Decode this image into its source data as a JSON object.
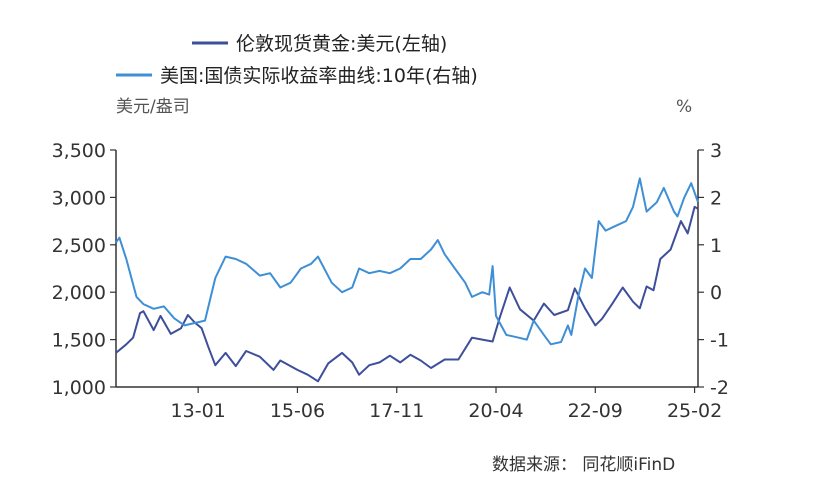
{
  "chart_data": {
    "type": "line",
    "title": "",
    "legend_position": "top",
    "grid": false,
    "x_ticks": [
      "13-01",
      "15-06",
      "17-11",
      "20-04",
      "22-09",
      "25-02"
    ],
    "x_range": [
      "2011-01",
      "2025-03"
    ],
    "y_left": {
      "unit": "美元/盎司",
      "ylim": [
        1000,
        3500
      ],
      "ticks": [
        "1,000",
        "1,500",
        "2,000",
        "2,500",
        "3,000",
        "3,500"
      ]
    },
    "y_right": {
      "unit": "%",
      "ylim": [
        -2,
        3
      ],
      "ticks": [
        "-2",
        "-1",
        "0",
        "1",
        "2",
        "3"
      ]
    },
    "series": [
      {
        "name": "伦敦现货黄金:美元(左轴)",
        "axis": "left",
        "color": "#3d4f9a",
        "points": [
          [
            "2011-01",
            1360
          ],
          [
            "2011-04",
            1450
          ],
          [
            "2011-06",
            1520
          ],
          [
            "2011-08",
            1780
          ],
          [
            "2011-09",
            1800
          ],
          [
            "2011-12",
            1600
          ],
          [
            "2012-02",
            1750
          ],
          [
            "2012-05",
            1560
          ],
          [
            "2012-08",
            1620
          ],
          [
            "2012-10",
            1760
          ],
          [
            "2012-12",
            1680
          ],
          [
            "2013-02",
            1620
          ],
          [
            "2013-04",
            1420
          ],
          [
            "2013-06",
            1230
          ],
          [
            "2013-09",
            1360
          ],
          [
            "2013-12",
            1220
          ],
          [
            "2014-03",
            1380
          ],
          [
            "2014-07",
            1320
          ],
          [
            "2014-11",
            1180
          ],
          [
            "2015-01",
            1280
          ],
          [
            "2015-06",
            1180
          ],
          [
            "2015-09",
            1130
          ],
          [
            "2015-12",
            1060
          ],
          [
            "2016-03",
            1250
          ],
          [
            "2016-07",
            1360
          ],
          [
            "2016-10",
            1260
          ],
          [
            "2016-12",
            1130
          ],
          [
            "2017-03",
            1230
          ],
          [
            "2017-06",
            1260
          ],
          [
            "2017-09",
            1330
          ],
          [
            "2017-12",
            1260
          ],
          [
            "2018-03",
            1340
          ],
          [
            "2018-06",
            1280
          ],
          [
            "2018-09",
            1200
          ],
          [
            "2019-01",
            1290
          ],
          [
            "2019-05",
            1290
          ],
          [
            "2019-09",
            1520
          ],
          [
            "2019-12",
            1500
          ],
          [
            "2020-03",
            1480
          ],
          [
            "2020-05",
            1720
          ],
          [
            "2020-08",
            2050
          ],
          [
            "2020-11",
            1820
          ],
          [
            "2021-03",
            1700
          ],
          [
            "2021-06",
            1880
          ],
          [
            "2021-09",
            1760
          ],
          [
            "2022-01",
            1810
          ],
          [
            "2022-03",
            2040
          ],
          [
            "2022-06",
            1830
          ],
          [
            "2022-09",
            1650
          ],
          [
            "2022-11",
            1720
          ],
          [
            "2023-02",
            1880
          ],
          [
            "2023-05",
            2050
          ],
          [
            "2023-08",
            1900
          ],
          [
            "2023-10",
            1830
          ],
          [
            "2023-12",
            2060
          ],
          [
            "2024-02",
            2020
          ],
          [
            "2024-04",
            2350
          ],
          [
            "2024-07",
            2450
          ],
          [
            "2024-10",
            2750
          ],
          [
            "2024-12",
            2620
          ],
          [
            "2025-02",
            2900
          ],
          [
            "2025-03",
            2880
          ]
        ]
      },
      {
        "name": "美国:国债实际收益率曲线:10年(右轴)",
        "axis": "right",
        "color": "#3f8fd6",
        "points": [
          [
            "2011-01",
            1.05
          ],
          [
            "2011-02",
            1.15
          ],
          [
            "2011-04",
            0.7
          ],
          [
            "2011-07",
            -0.1
          ],
          [
            "2011-09",
            -0.25
          ],
          [
            "2011-12",
            -0.35
          ],
          [
            "2012-03",
            -0.3
          ],
          [
            "2012-06",
            -0.55
          ],
          [
            "2012-09",
            -0.7
          ],
          [
            "2012-12",
            -0.65
          ],
          [
            "2013-03",
            -0.6
          ],
          [
            "2013-06",
            0.3
          ],
          [
            "2013-09",
            0.75
          ],
          [
            "2013-12",
            0.7
          ],
          [
            "2014-03",
            0.6
          ],
          [
            "2014-07",
            0.35
          ],
          [
            "2014-10",
            0.4
          ],
          [
            "2015-01",
            0.1
          ],
          [
            "2015-04",
            0.2
          ],
          [
            "2015-07",
            0.5
          ],
          [
            "2015-10",
            0.6
          ],
          [
            "2015-12",
            0.75
          ],
          [
            "2016-04",
            0.2
          ],
          [
            "2016-07",
            0.0
          ],
          [
            "2016-10",
            0.1
          ],
          [
            "2016-12",
            0.5
          ],
          [
            "2017-03",
            0.4
          ],
          [
            "2017-06",
            0.45
          ],
          [
            "2017-09",
            0.4
          ],
          [
            "2017-12",
            0.5
          ],
          [
            "2018-03",
            0.7
          ],
          [
            "2018-06",
            0.7
          ],
          [
            "2018-09",
            0.9
          ],
          [
            "2018-11",
            1.1
          ],
          [
            "2019-01",
            0.8
          ],
          [
            "2019-04",
            0.5
          ],
          [
            "2019-07",
            0.2
          ],
          [
            "2019-09",
            -0.1
          ],
          [
            "2019-12",
            0.0
          ],
          [
            "2020-02",
            -0.05
          ],
          [
            "2020-03",
            0.55
          ],
          [
            "2020-04",
            -0.5
          ],
          [
            "2020-07",
            -0.9
          ],
          [
            "2020-10",
            -0.95
          ],
          [
            "2021-01",
            -1.0
          ],
          [
            "2021-03",
            -0.6
          ],
          [
            "2021-06",
            -0.9
          ],
          [
            "2021-08",
            -1.1
          ],
          [
            "2021-11",
            -1.05
          ],
          [
            "2022-01",
            -0.7
          ],
          [
            "2022-02",
            -0.9
          ],
          [
            "2022-04",
            -0.1
          ],
          [
            "2022-06",
            0.5
          ],
          [
            "2022-08",
            0.3
          ],
          [
            "2022-10",
            1.5
          ],
          [
            "2022-12",
            1.3
          ],
          [
            "2023-03",
            1.4
          ],
          [
            "2023-06",
            1.5
          ],
          [
            "2023-08",
            1.8
          ],
          [
            "2023-10",
            2.4
          ],
          [
            "2023-12",
            1.7
          ],
          [
            "2024-03",
            1.9
          ],
          [
            "2024-05",
            2.2
          ],
          [
            "2024-08",
            1.7
          ],
          [
            "2024-09",
            1.6
          ],
          [
            "2024-11",
            2.0
          ],
          [
            "2025-01",
            2.3
          ],
          [
            "2025-03",
            1.9
          ]
        ]
      }
    ]
  },
  "source": "数据来源： 同花顺iFinD"
}
